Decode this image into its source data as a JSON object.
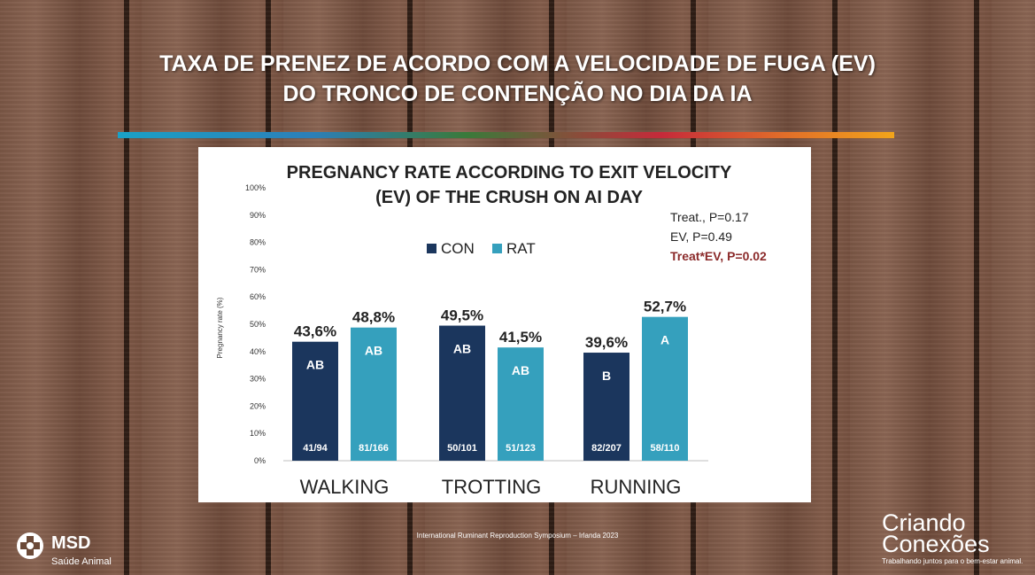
{
  "slide": {
    "title_line1": "TAXA DE PRENEZ DE ACORDO COM A VELOCIDADE DE FUGA (EV)",
    "title_line2": "DO TRONCO DE CONTENÇÃO NO DIA DA IA",
    "footer_note": "International Ruminant Reproduction Symposium – Irlanda 2023",
    "msd_name": "MSD",
    "msd_sub": "Saúde Animal",
    "brand_line1": "Criando",
    "brand_line2": "Conexões",
    "brand_tagline": "Trabalhando juntos para o bem-estar animal."
  },
  "chart_data": {
    "type": "bar",
    "title": [
      "PREGNANCY RATE ACCORDING TO EXIT VELOCITY",
      "(EV) OF THE CRUSH ON AI DAY"
    ],
    "xlabel": "",
    "ylabel": "Pregnancy rate (%)",
    "ylim": [
      0,
      100
    ],
    "yticks": [
      "0%",
      "10%",
      "20%",
      "30%",
      "40%",
      "50%",
      "60%",
      "70%",
      "80%",
      "90%",
      "100%"
    ],
    "categories": [
      "WALKING",
      "TROTTING",
      "RUNNING"
    ],
    "series": [
      {
        "name": "CON",
        "color": "#1b365d",
        "values": [
          43.6,
          49.5,
          39.6
        ],
        "value_labels": [
          "43,6%",
          "49,5%",
          "39,6%"
        ],
        "letters": [
          "AB",
          "AB",
          "B"
        ],
        "counts": [
          "41/94",
          "50/101",
          "82/207"
        ]
      },
      {
        "name": "RAT",
        "color": "#35a0bd",
        "values": [
          48.8,
          41.5,
          52.7
        ],
        "value_labels": [
          "48,8%",
          "41,5%",
          "52,7%"
        ],
        "letters": [
          "AB",
          "AB",
          "A"
        ],
        "counts": [
          "81/166",
          "51/123",
          "58/110"
        ]
      }
    ],
    "legend_position": "top-center",
    "stats": [
      {
        "text": "Treat., P=0.17",
        "color": "#222222"
      },
      {
        "text": "EV, P=0.49",
        "color": "#222222"
      },
      {
        "text": "Treat*EV, P=0.02",
        "color": "#8b2a2a"
      }
    ],
    "grid": false
  }
}
